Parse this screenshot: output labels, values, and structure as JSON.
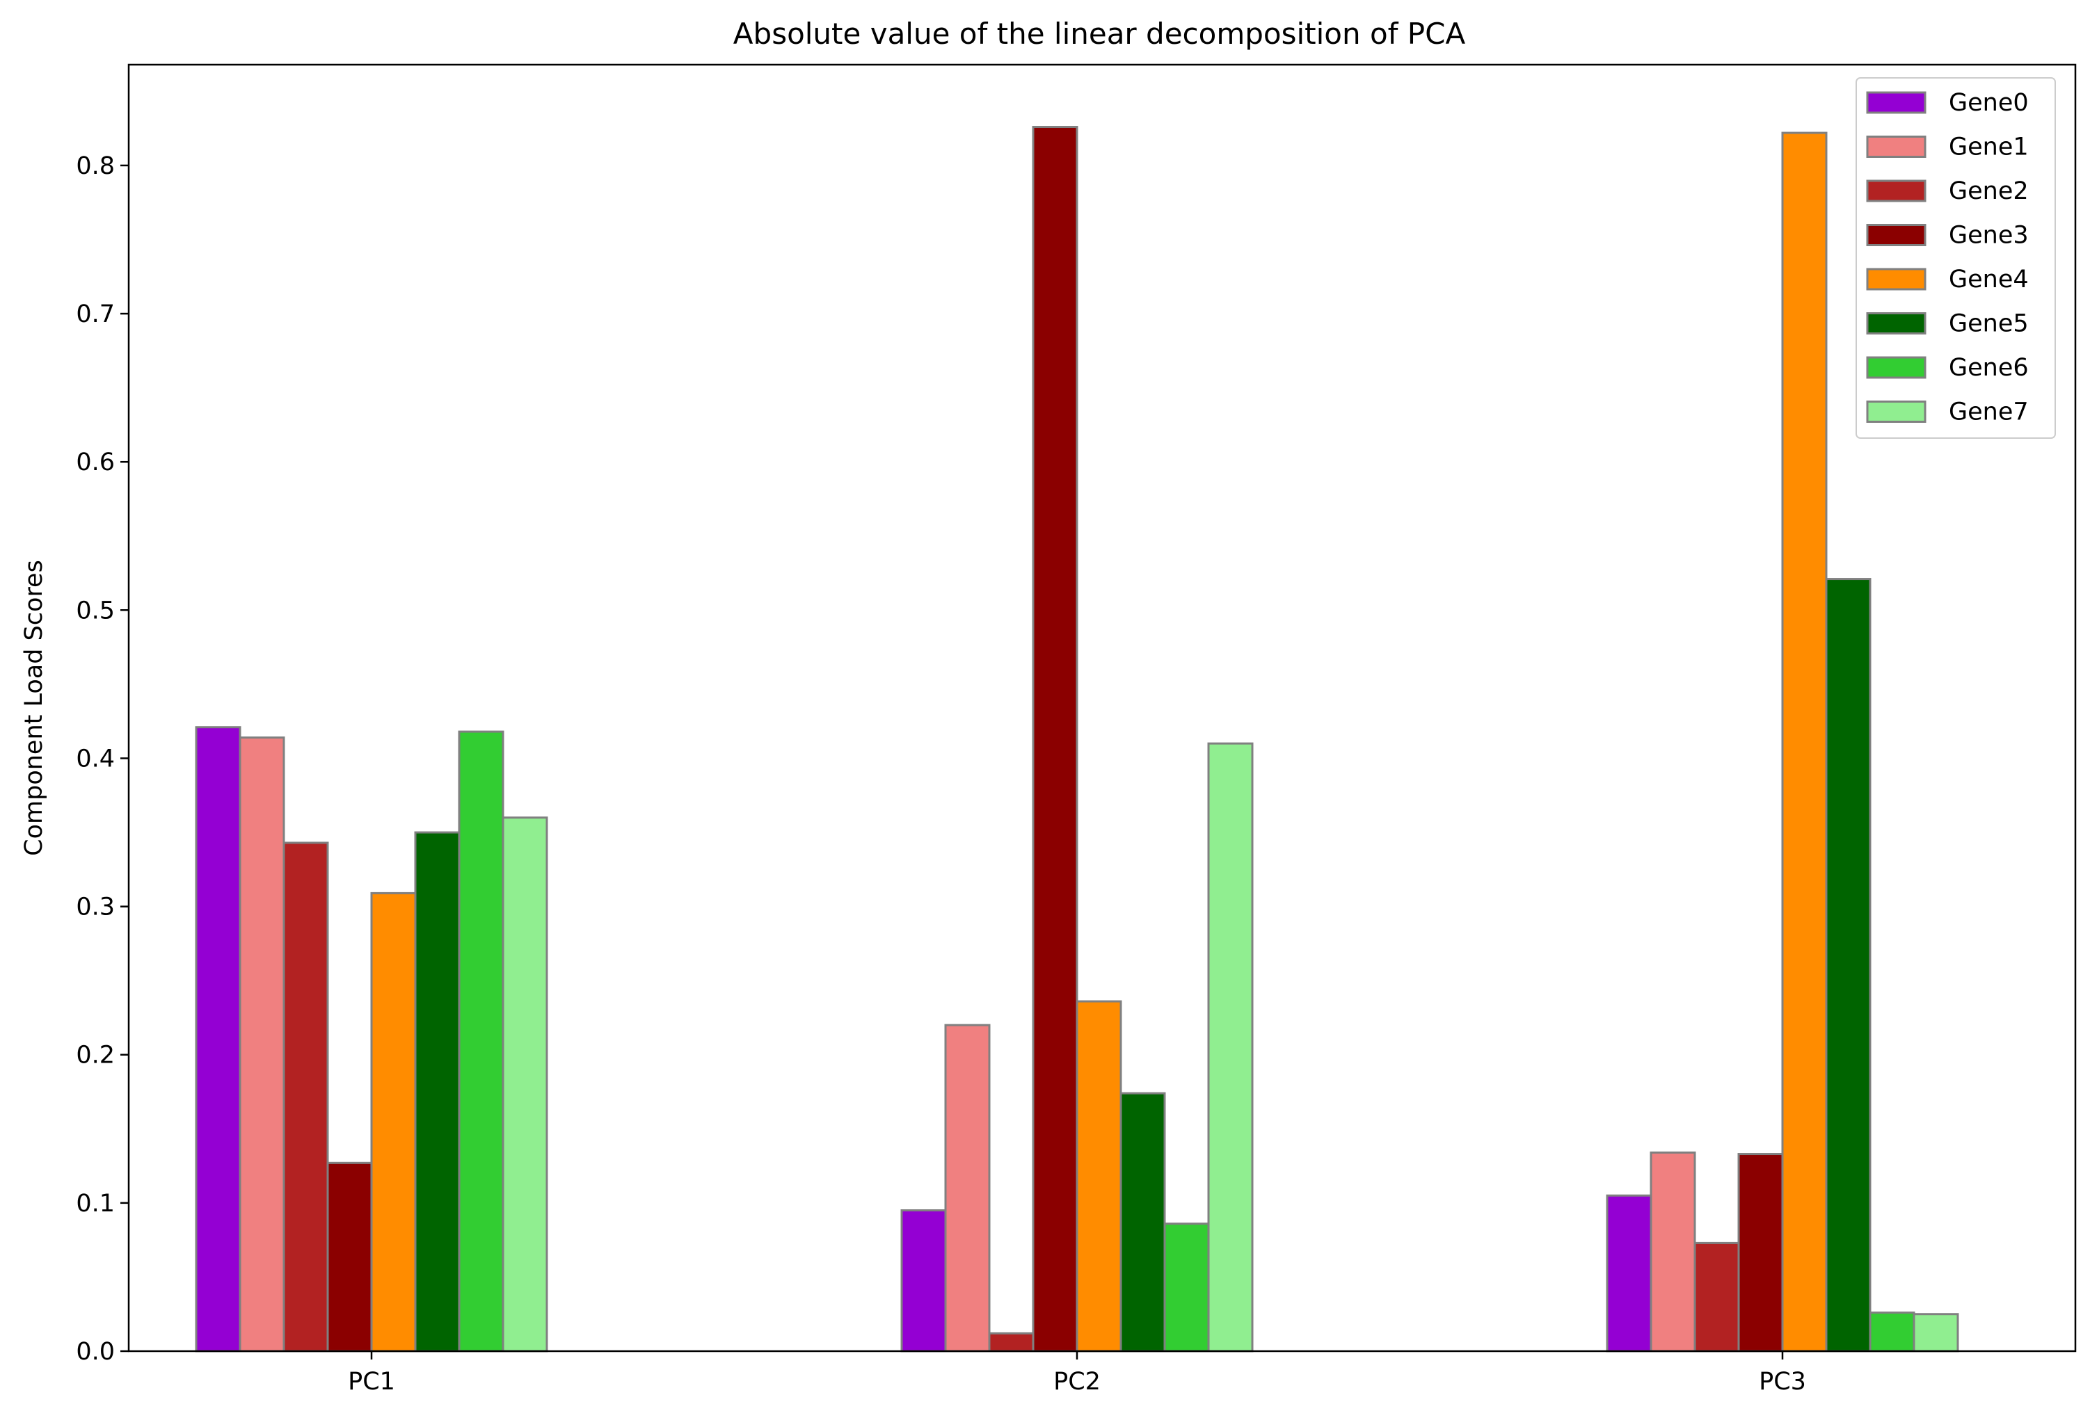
{
  "chart_data": {
    "type": "bar",
    "title": "Absolute value of the linear decomposition of PCA",
    "xlabel": "",
    "ylabel": "Component Load Scores",
    "categories": [
      "PC1",
      "PC2",
      "PC3"
    ],
    "ylim": [
      0,
      0.868
    ],
    "yticks": [
      "0.0",
      "0.1",
      "0.2",
      "0.3",
      "0.4",
      "0.5",
      "0.6",
      "0.7",
      "0.8"
    ],
    "grid": false,
    "legend_position": "top-right",
    "bar_edge_color": "#808080",
    "series": [
      {
        "name": "Gene0",
        "color": "#9400d3",
        "values": [
          0.421,
          0.095,
          0.105
        ]
      },
      {
        "name": "Gene1",
        "color": "#f08080",
        "values": [
          0.414,
          0.22,
          0.134
        ]
      },
      {
        "name": "Gene2",
        "color": "#b22222",
        "values": [
          0.343,
          0.012,
          0.073
        ]
      },
      {
        "name": "Gene3",
        "color": "#8b0000",
        "values": [
          0.127,
          0.826,
          0.133
        ]
      },
      {
        "name": "Gene4",
        "color": "#ff8c00",
        "values": [
          0.309,
          0.236,
          0.822
        ]
      },
      {
        "name": "Gene5",
        "color": "#006400",
        "values": [
          0.35,
          0.174,
          0.521
        ]
      },
      {
        "name": "Gene6",
        "color": "#32cd32",
        "values": [
          0.418,
          0.086,
          0.026
        ]
      },
      {
        "name": "Gene7",
        "color": "#90ee90",
        "values": [
          0.36,
          0.41,
          0.025
        ]
      }
    ]
  }
}
